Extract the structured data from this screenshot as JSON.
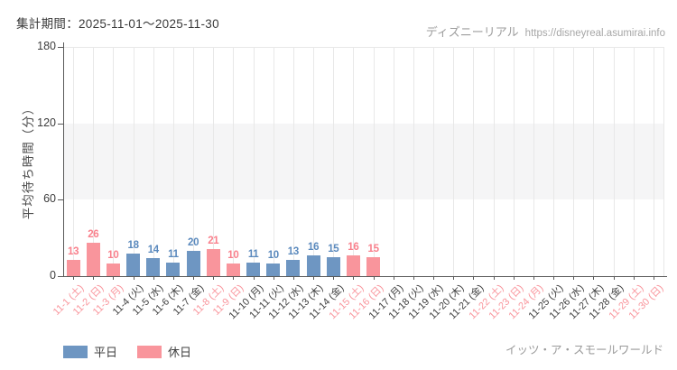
{
  "header": {
    "period_label": "集計期間：2025-11-01～2025-11-30",
    "site_name": "ディズニーリアル",
    "site_url": "https://disneyreal.asumirai.info"
  },
  "footer": {
    "attraction_name": "イッツ・ア・スモールワールド"
  },
  "colors": {
    "weekday_bar": "#6e96c2",
    "holiday_bar": "#f9959c",
    "weekday_value_label": "#5a89bd",
    "holiday_value_label": "#f9808c",
    "weekday_tick_label": "#3f3f3f",
    "holiday_tick_label": "#f9959c",
    "axis": "#595959",
    "gridline": "#e8e8e8",
    "band": "#f5f5f6"
  },
  "chart_data": {
    "type": "bar",
    "title": "集計期間：2025-11-01～2025-11-30",
    "xlabel": "",
    "ylabel": "平均待ち時間（分）",
    "ylim": [
      0,
      180
    ],
    "yticks": [
      0,
      60,
      120,
      180
    ],
    "shaded_band": [
      60,
      120
    ],
    "grid": true,
    "legend_position": "bottom-left",
    "legend": [
      {
        "label": "平日",
        "series": "weekday"
      },
      {
        "label": "休日",
        "series": "holiday"
      }
    ],
    "days": [
      {
        "label": "11-1 (土)",
        "type": "holiday",
        "value": 13
      },
      {
        "label": "11-2 (日)",
        "type": "holiday",
        "value": 26
      },
      {
        "label": "11-3 (月)",
        "type": "holiday",
        "value": 10
      },
      {
        "label": "11-4 (火)",
        "type": "weekday",
        "value": 18
      },
      {
        "label": "11-5 (水)",
        "type": "weekday",
        "value": 14
      },
      {
        "label": "11-6 (木)",
        "type": "weekday",
        "value": 11
      },
      {
        "label": "11-7 (金)",
        "type": "weekday",
        "value": 20
      },
      {
        "label": "11-8 (土)",
        "type": "holiday",
        "value": 21
      },
      {
        "label": "11-9 (日)",
        "type": "holiday",
        "value": 10
      },
      {
        "label": "11-10 (月)",
        "type": "weekday",
        "value": 11
      },
      {
        "label": "11-11 (火)",
        "type": "weekday",
        "value": 10
      },
      {
        "label": "11-12 (水)",
        "type": "weekday",
        "value": 13
      },
      {
        "label": "11-13 (木)",
        "type": "weekday",
        "value": 16
      },
      {
        "label": "11-14 (金)",
        "type": "weekday",
        "value": 15
      },
      {
        "label": "11-15 (土)",
        "type": "holiday",
        "value": 16
      },
      {
        "label": "11-16 (日)",
        "type": "holiday",
        "value": 15
      },
      {
        "label": "11-17 (月)",
        "type": "weekday",
        "value": null
      },
      {
        "label": "11-18 (火)",
        "type": "weekday",
        "value": null
      },
      {
        "label": "11-19 (水)",
        "type": "weekday",
        "value": null
      },
      {
        "label": "11-20 (木)",
        "type": "weekday",
        "value": null
      },
      {
        "label": "11-21 (金)",
        "type": "weekday",
        "value": null
      },
      {
        "label": "11-22 (土)",
        "type": "holiday",
        "value": null
      },
      {
        "label": "11-23 (日)",
        "type": "holiday",
        "value": null
      },
      {
        "label": "11-24 (月)",
        "type": "holiday",
        "value": null
      },
      {
        "label": "11-25 (火)",
        "type": "weekday",
        "value": null
      },
      {
        "label": "11-26 (水)",
        "type": "weekday",
        "value": null
      },
      {
        "label": "11-27 (木)",
        "type": "weekday",
        "value": null
      },
      {
        "label": "11-28 (金)",
        "type": "weekday",
        "value": null
      },
      {
        "label": "11-29 (土)",
        "type": "holiday",
        "value": null
      },
      {
        "label": "11-30 (日)",
        "type": "holiday",
        "value": null
      }
    ]
  }
}
